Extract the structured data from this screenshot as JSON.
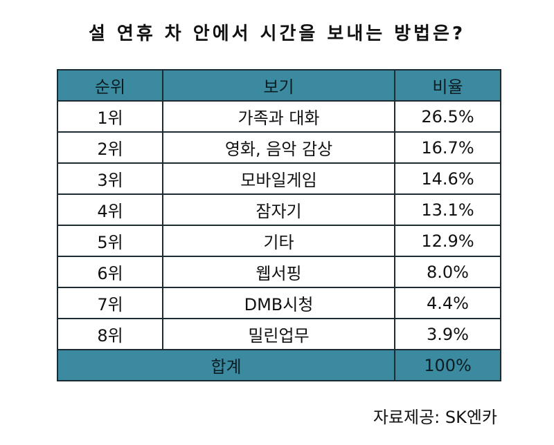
{
  "title": "설 연휴 차 안에서 시간을 보내는 방법은?",
  "header": {
    "rank": "순위",
    "item": "보기",
    "ratio": "비율"
  },
  "rows": [
    {
      "rank": "1위",
      "item": "가족과 대화",
      "ratio": "26.5%"
    },
    {
      "rank": "2위",
      "item": "영화, 음악 감상",
      "ratio": "16.7%"
    },
    {
      "rank": "3위",
      "item": "모바일게임",
      "ratio": "14.6%"
    },
    {
      "rank": "4위",
      "item": "잠자기",
      "ratio": "13.1%"
    },
    {
      "rank": "5위",
      "item": "기타",
      "ratio": "12.9%"
    },
    {
      "rank": "6위",
      "item": "웹서핑",
      "ratio": "8.0%"
    },
    {
      "rank": "7위",
      "item": "DMB시청",
      "ratio": "4.4%"
    },
    {
      "rank": "8위",
      "item": "밀린업무",
      "ratio": "3.9%"
    }
  ],
  "footer": {
    "label": "합계",
    "total": "100%"
  },
  "source": "자료제공: SK엔카",
  "colors": {
    "header_bg": "#3b8aa0",
    "border": "#1b2a30"
  },
  "chart_data": {
    "type": "table",
    "title": "설 연휴 차 안에서 시간을 보내는 방법은?",
    "columns": [
      "순위",
      "보기",
      "비율"
    ],
    "categories": [
      "가족과 대화",
      "영화, 음악 감상",
      "모바일게임",
      "잠자기",
      "기타",
      "웹서핑",
      "DMB시청",
      "밀린업무"
    ],
    "values": [
      26.5,
      16.7,
      14.6,
      13.1,
      12.9,
      8.0,
      4.4,
      3.9
    ],
    "total": 100
  }
}
